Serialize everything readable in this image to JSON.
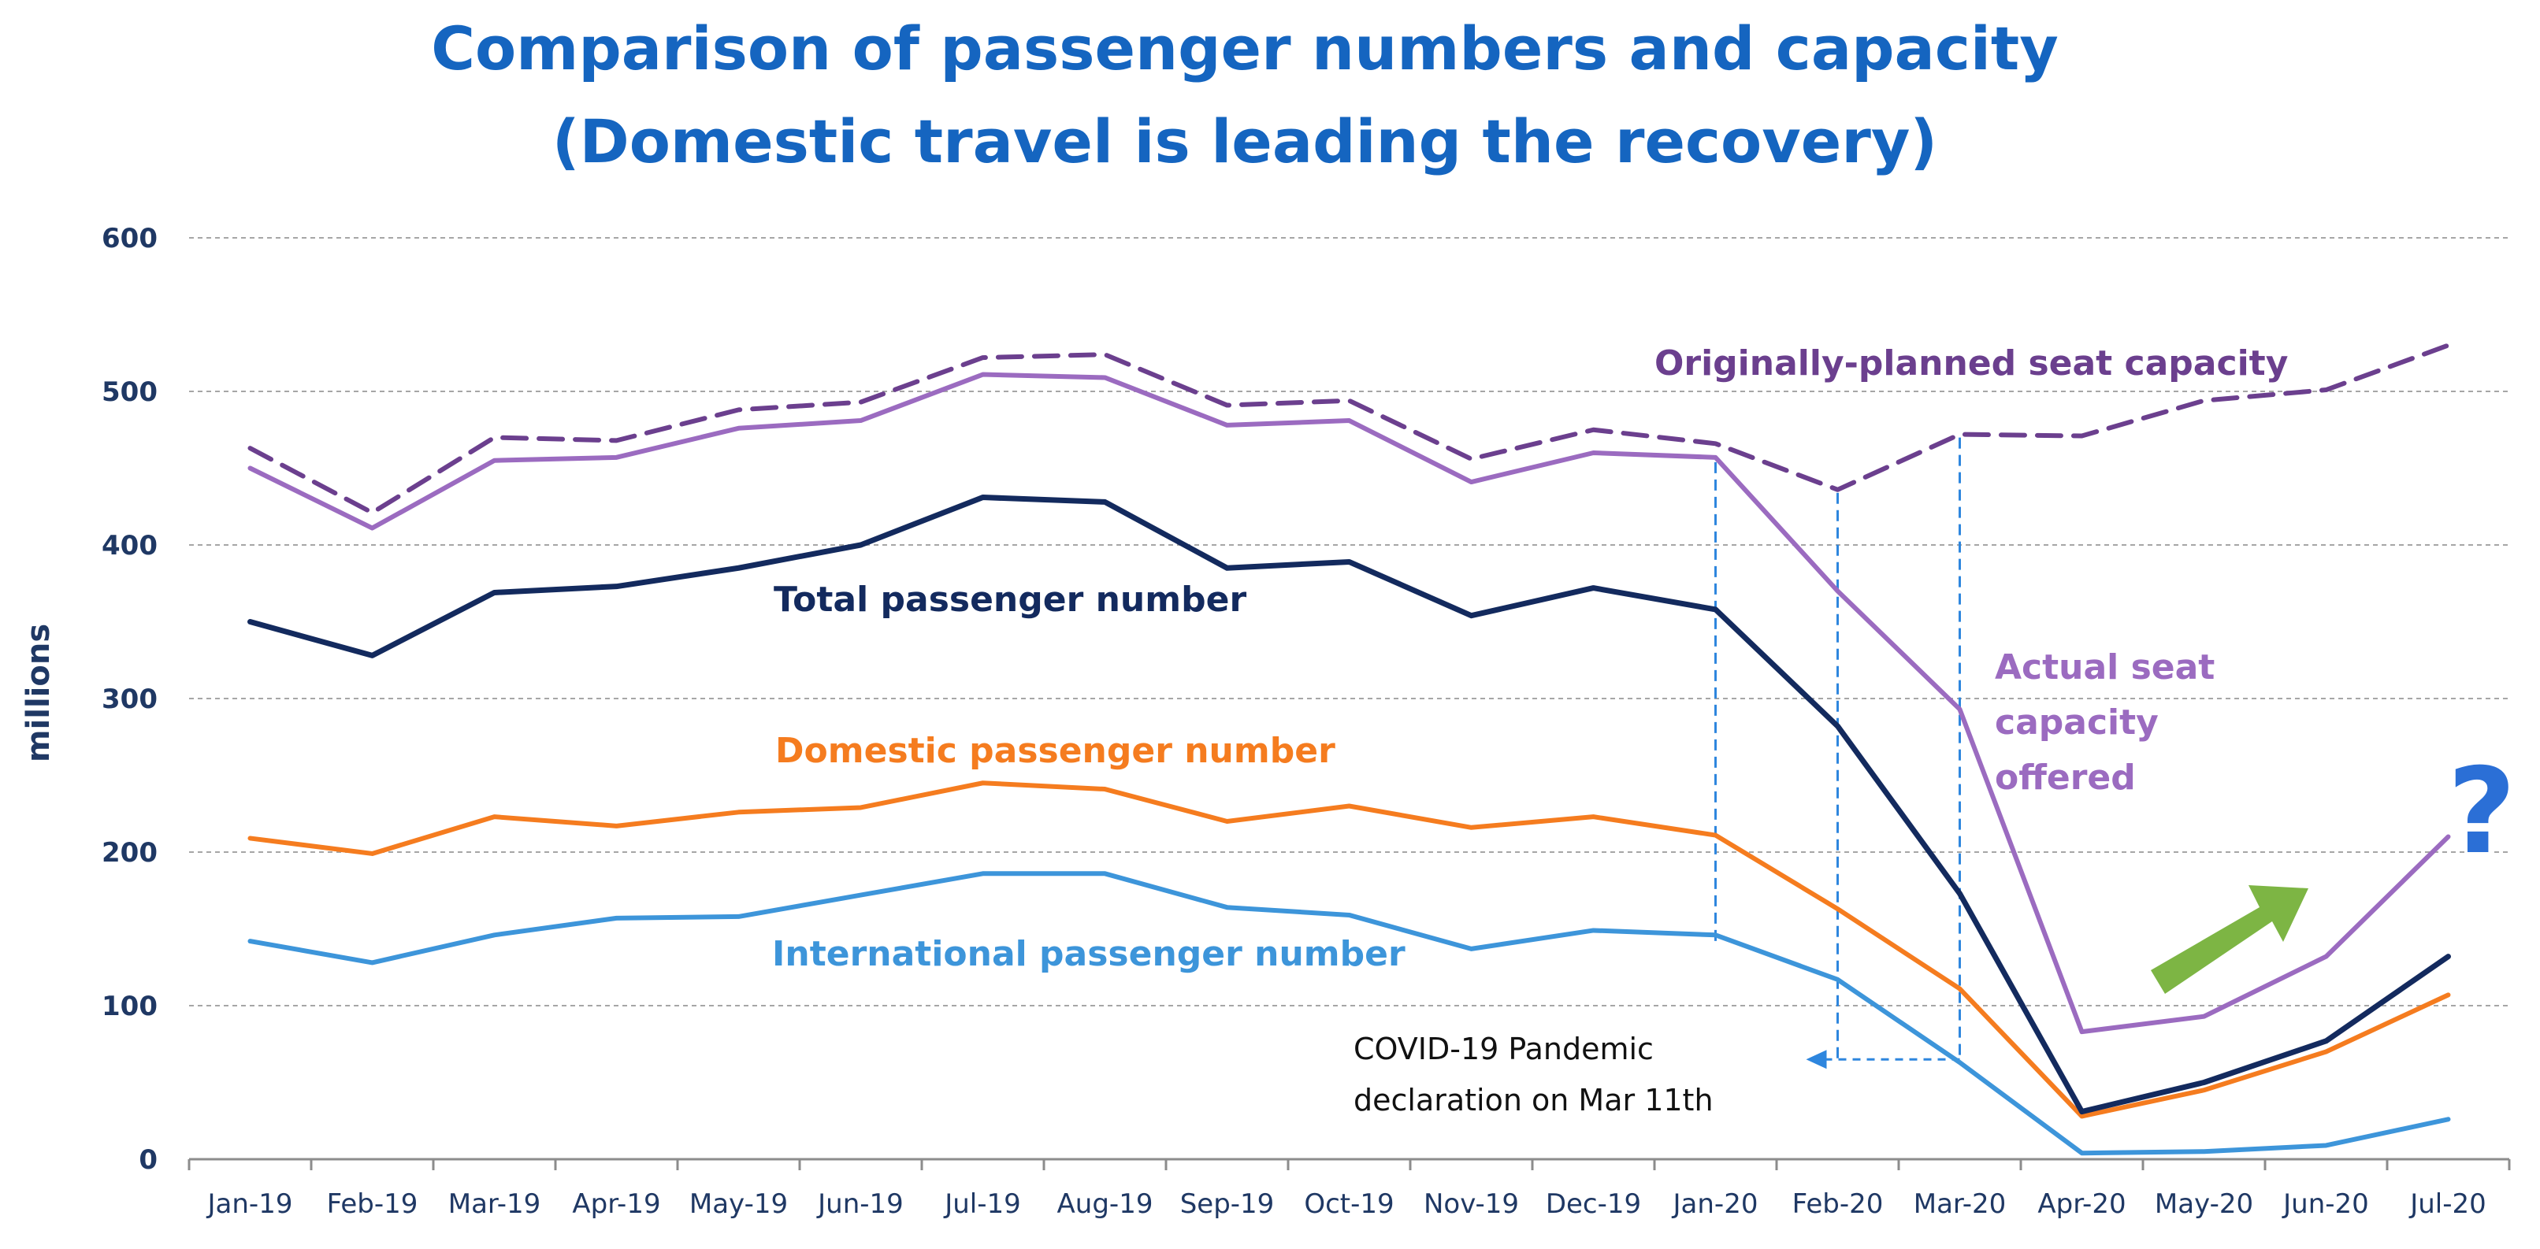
{
  "chart_data": {
    "type": "line",
    "title": [
      "Comparison of passenger numbers and capacity",
      "(Domestic travel is leading the recovery)"
    ],
    "xlabel": "",
    "ylabel": "millions",
    "ylim": [
      0,
      600
    ],
    "yticks": [
      0,
      100,
      200,
      300,
      400,
      500,
      600
    ],
    "grid": true,
    "categories": [
      "Jan-19",
      "Feb-19",
      "Mar-19",
      "Apr-19",
      "May-19",
      "Jun-19",
      "Jul-19",
      "Aug-19",
      "Sep-19",
      "Oct-19",
      "Nov-19",
      "Dec-19",
      "Jan-20",
      "Feb-20",
      "Mar-20",
      "Apr-20",
      "May-20",
      "Jun-20",
      "Jul-20"
    ],
    "series": [
      {
        "name": "Originally-planned seat capacity",
        "color": "#6B3F8E",
        "dash": true,
        "values": [
          463,
          421,
          470,
          468,
          488,
          493,
          522,
          524,
          491,
          494,
          456,
          475,
          466,
          436,
          472,
          471,
          494,
          501,
          530
        ]
      },
      {
        "name": "Actual seat capacity offered",
        "color": "#9B6BC0",
        "dash": false,
        "values": [
          450,
          411,
          455,
          457,
          476,
          481,
          511,
          509,
          478,
          481,
          441,
          460,
          457,
          370,
          293,
          83,
          93,
          132,
          210
        ]
      },
      {
        "name": "Total passenger number",
        "color": "#132A5E",
        "dash": false,
        "values": [
          350,
          328,
          369,
          373,
          385,
          400,
          431,
          428,
          385,
          389,
          354,
          372,
          358,
          282,
          173,
          31,
          50,
          77,
          132
        ]
      },
      {
        "name": "Domestic passenger number",
        "color": "#F57C1F",
        "dash": false,
        "values": [
          209,
          199,
          223,
          217,
          226,
          229,
          245,
          241,
          220,
          230,
          216,
          223,
          211,
          163,
          111,
          28,
          45,
          70,
          107
        ]
      },
      {
        "name": "International passenger number",
        "color": "#3D95DA",
        "dash": false,
        "values": [
          142,
          128,
          146,
          157,
          158,
          172,
          186,
          186,
          164,
          159,
          137,
          149,
          146,
          117,
          63,
          4,
          5,
          9,
          26
        ]
      }
    ],
    "labels": {
      "planned": "Originally-planned seat capacity",
      "actual": [
        "Actual seat",
        "capacity",
        "offered"
      ],
      "total": "Total passenger number",
      "domestic": "Domestic passenger number",
      "international": "International passenger number"
    },
    "annotations": {
      "covid": [
        "COVID-19 Pandemic",
        "declaration on Mar 11th"
      ],
      "question_mark": "?"
    },
    "colors": {
      "title": "#1565C0",
      "axis": "#1F3864",
      "grid": "#A6A6A6",
      "arrow": "#7DB544",
      "guide": "#2E86DE"
    }
  }
}
